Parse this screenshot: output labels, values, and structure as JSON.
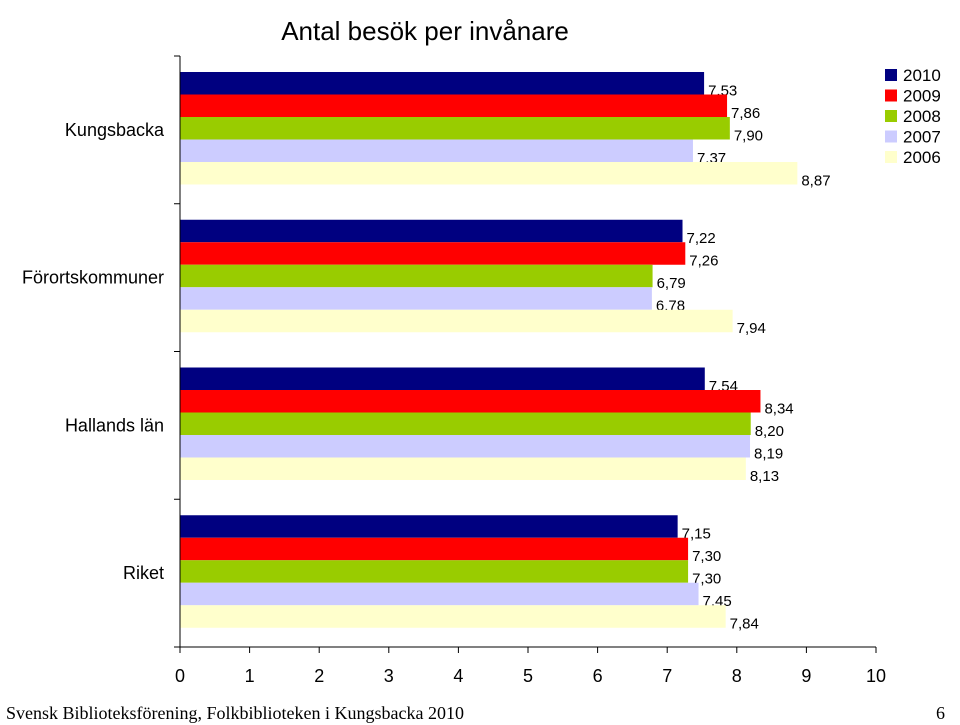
{
  "chart_data": {
    "type": "bar",
    "orientation": "horizontal",
    "title": "Antal besök per invånare",
    "categories": [
      "Kungsbacka",
      "Förortskommuner",
      "Hallands län",
      "Riket"
    ],
    "series": [
      {
        "name": "2010",
        "color": "#000080",
        "values": [
          7.53,
          7.22,
          7.54,
          7.15
        ],
        "labels": [
          "7,53",
          "7,22",
          "7,54",
          "7,15"
        ]
      },
      {
        "name": "2009",
        "color": "#ff0000",
        "values": [
          7.86,
          7.26,
          8.34,
          7.3
        ],
        "labels": [
          "7,86",
          "7,26",
          "8,34",
          "7,30"
        ]
      },
      {
        "name": "2008",
        "color": "#99cc00",
        "values": [
          7.9,
          6.79,
          8.2,
          7.3
        ],
        "labels": [
          "7,90",
          "6,79",
          "8,20",
          "7,30"
        ]
      },
      {
        "name": "2007",
        "color": "#ccccff",
        "values": [
          7.37,
          6.78,
          8.19,
          7.45
        ],
        "labels": [
          "7,37",
          "6,78",
          "8,19",
          "7,45"
        ]
      },
      {
        "name": "2006",
        "color": "#ffffcc",
        "values": [
          8.87,
          7.94,
          8.13,
          7.84
        ],
        "labels": [
          "8,87",
          "7,94",
          "8,13",
          "7,84"
        ]
      }
    ],
    "xlim": [
      0,
      10
    ],
    "xticks": [
      "0",
      "1",
      "2",
      "3",
      "4",
      "5",
      "6",
      "7",
      "8",
      "9",
      "10"
    ],
    "grid": false,
    "legend_position": "top-right"
  },
  "footer": {
    "source": "Svensk Biblioteksförening, Folkbiblioteken i Kungsbacka 2010",
    "page_number": "6"
  }
}
